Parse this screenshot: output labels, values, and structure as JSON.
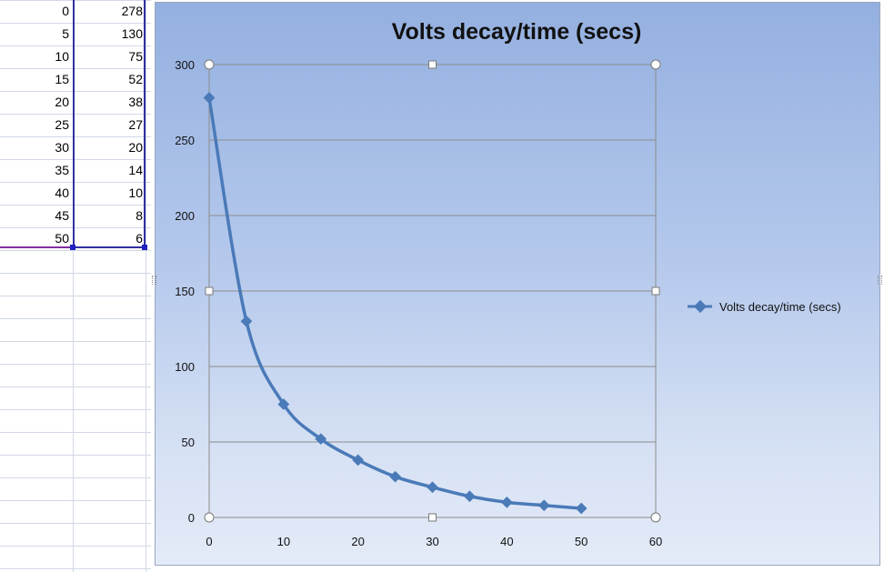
{
  "sheet": {
    "rows": [
      {
        "a": "0",
        "b": "278"
      },
      {
        "a": "5",
        "b": "130"
      },
      {
        "a": "10",
        "b": "75"
      },
      {
        "a": "15",
        "b": "52"
      },
      {
        "a": "20",
        "b": "38"
      },
      {
        "a": "25",
        "b": "27"
      },
      {
        "a": "30",
        "b": "20"
      },
      {
        "a": "35",
        "b": "14"
      },
      {
        "a": "40",
        "b": "10"
      },
      {
        "a": "45",
        "b": "8"
      },
      {
        "a": "50",
        "b": "6"
      }
    ]
  },
  "chart_data": {
    "type": "scatter",
    "title": "Volts decay/time (secs)",
    "xlabel": "",
    "ylabel": "",
    "xlim": [
      0,
      60
    ],
    "ylim": [
      0,
      300
    ],
    "xticks": [
      0,
      10,
      20,
      30,
      40,
      50,
      60
    ],
    "yticks": [
      0,
      50,
      100,
      150,
      200,
      250,
      300
    ],
    "grid": "horizontal",
    "smooth": true,
    "markers": "diamond",
    "legend_position": "right",
    "series": [
      {
        "name": "Volts decay/time (secs)",
        "color": "#4a7ab8",
        "x": [
          0,
          5,
          10,
          15,
          20,
          25,
          30,
          35,
          40,
          45,
          50
        ],
        "y": [
          278,
          130,
          75,
          52,
          38,
          27,
          20,
          14,
          10,
          8,
          6
        ]
      }
    ]
  }
}
